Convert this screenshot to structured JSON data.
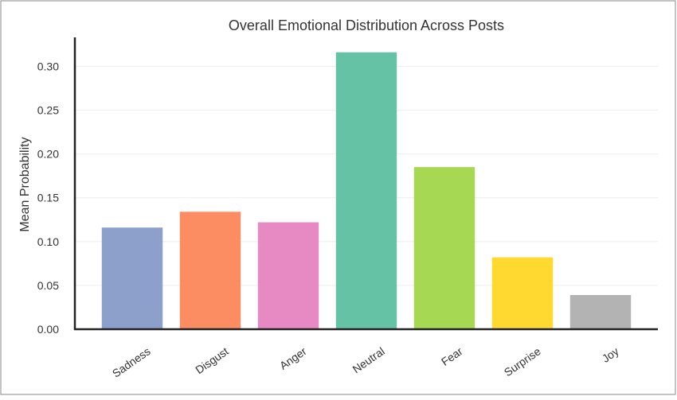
{
  "chart_data": {
    "type": "bar",
    "title": "Overall Emotional Distribution Across Posts",
    "y_label": "Mean Probability",
    "categories": [
      "Sadness",
      "Disgust",
      "Anger",
      "Neutral",
      "Fear",
      "Surprise",
      "Joy"
    ],
    "values": [
      0.116,
      0.134,
      0.122,
      0.316,
      0.185,
      0.082,
      0.039
    ],
    "colors": [
      "#8da0cb",
      "#fc8d62",
      "#e78ac3",
      "#66c2a5",
      "#a6d854",
      "#ffd92f",
      "#b3b3b3"
    ],
    "ylim": [
      0,
      0.333
    ],
    "yticks": [
      {
        "value": 0,
        "label": "0.00"
      },
      {
        "value": 0.05,
        "label": "0.05"
      },
      {
        "value": 0.1,
        "label": "0.10"
      },
      {
        "value": 0.15,
        "label": "0.15"
      },
      {
        "value": 0.2,
        "label": "0.20"
      },
      {
        "value": 0.25,
        "label": "0.25"
      },
      {
        "value": 0.3,
        "label": "0.30"
      }
    ],
    "grid": true
  }
}
